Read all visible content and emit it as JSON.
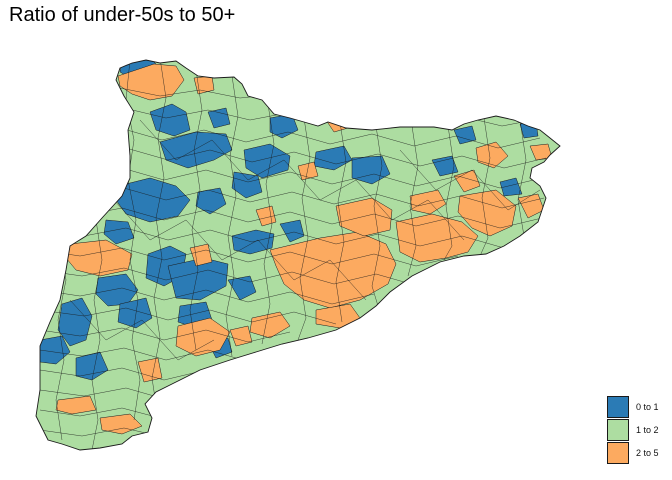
{
  "title": "Ratio of under-50s to 50+",
  "colors": {
    "band_0_1": "#2b7bb5",
    "band_1_2": "#addda1",
    "band_2_5": "#fcaa60",
    "border": "#1a1a1a"
  },
  "legend": {
    "items": [
      {
        "label": "0 to 1",
        "color": "#2b7bb5"
      },
      {
        "label": "1 to 2",
        "color": "#addda1"
      },
      {
        "label": "2 to 5",
        "color": "#fcaa60"
      }
    ]
  }
}
